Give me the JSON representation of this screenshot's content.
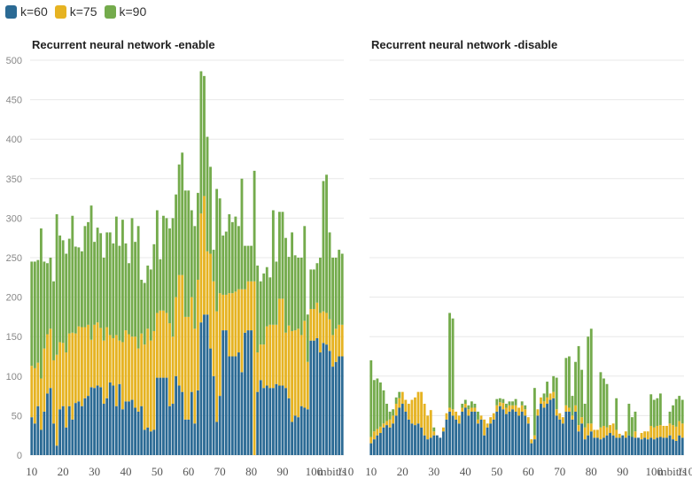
{
  "legend": [
    {
      "label": "k=60",
      "color": "#2b6a94"
    },
    {
      "label": "k=75",
      "color": "#e6b322"
    },
    {
      "label": "k=90",
      "color": "#74ab4c"
    }
  ],
  "chart_data": [
    {
      "type": "bar",
      "stacked": true,
      "title": "Recurrent neural network -enable",
      "xlabel": "mbit/s",
      "ylabel": "",
      "ylim": [
        0,
        500
      ],
      "yticks": [
        0,
        50,
        100,
        150,
        200,
        250,
        300,
        350,
        400,
        450,
        500
      ],
      "xticks": [
        10,
        20,
        30,
        40,
        50,
        60,
        70,
        80,
        90,
        100,
        110
      ],
      "x_start": 10,
      "x_step": 1,
      "grid": true,
      "series": [
        {
          "name": "k=60",
          "values": [
            48,
            40,
            62,
            32,
            55,
            78,
            85,
            40,
            12,
            58,
            62,
            35,
            62,
            45,
            66,
            68,
            62,
            72,
            75,
            86,
            85,
            88,
            86,
            65,
            72,
            92,
            88,
            62,
            90,
            58,
            68,
            68,
            70,
            60,
            55,
            62,
            32,
            35,
            30,
            32,
            98,
            98,
            98,
            98,
            62,
            65,
            100,
            88,
            80,
            45,
            45,
            80,
            40,
            82,
            168,
            178,
            178,
            135,
            100,
            42,
            75,
            158,
            158,
            125,
            125,
            125,
            130,
            105,
            155,
            158,
            158,
            0,
            80,
            95,
            85,
            88,
            85,
            85,
            90,
            88,
            88,
            85,
            72,
            42,
            50,
            48,
            62,
            60,
            58,
            145,
            145,
            148,
            130,
            142,
            140,
            132,
            112,
            118,
            125,
            125
          ]
        },
        {
          "name": "k=75",
          "values": [
            65,
            70,
            55,
            65,
            80,
            75,
            75,
            80,
            115,
            85,
            80,
            95,
            92,
            110,
            88,
            95,
            100,
            90,
            90,
            60,
            80,
            80,
            75,
            80,
            90,
            60,
            60,
            90,
            55,
            85,
            90,
            85,
            80,
            90,
            80,
            92,
            108,
            125,
            115,
            125,
            82,
            85,
            85,
            82,
            105,
            85,
            100,
            140,
            148,
            130,
            130,
            120,
            120,
            140,
            138,
            150,
            80,
            120,
            120,
            140,
            130,
            45,
            45,
            80,
            80,
            82,
            80,
            105,
            55,
            62,
            62,
            220,
            50,
            45,
            55,
            75,
            80,
            80,
            75,
            110,
            110,
            70,
            92,
            115,
            108,
            112,
            90,
            110,
            60,
            40,
            40,
            45,
            50,
            40,
            40,
            40,
            40,
            42,
            40,
            40
          ]
        },
        {
          "name": "k=90",
          "values": [
            132,
            135,
            130,
            190,
            110,
            90,
            90,
            100,
            178,
            135,
            130,
            125,
            120,
            148,
            110,
            100,
            96,
            128,
            130,
            170,
            105,
            120,
            120,
            105,
            120,
            130,
            120,
            150,
            120,
            155,
            110,
            90,
            150,
            120,
            155,
            68,
            78,
            80,
            90,
            110,
            130,
            65,
            120,
            120,
            120,
            150,
            130,
            140,
            155,
            160,
            160,
            110,
            130,
            110,
            180,
            152,
            145,
            110,
            40,
            155,
            120,
            75,
            80,
            100,
            90,
            95,
            80,
            140,
            55,
            45,
            45,
            140,
            110,
            80,
            90,
            75,
            60,
            145,
            80,
            110,
            110,
            120,
            87,
            125,
            95,
            90,
            98,
            120,
            60,
            50,
            50,
            50,
            70,
            165,
            175,
            110,
            98,
            90,
            95,
            90
          ]
        }
      ]
    },
    {
      "type": "bar",
      "stacked": true,
      "title": "Recurrent neural network -disable",
      "xlabel": "mbit/s",
      "ylabel": "",
      "ylim": [
        0,
        500
      ],
      "yticks": [
        0,
        50,
        100,
        150,
        200,
        250,
        300,
        350,
        400,
        450,
        500
      ],
      "xticks": [
        10,
        20,
        30,
        40,
        50,
        60,
        70,
        80,
        90,
        100,
        110
      ],
      "x_start": 10,
      "x_step": 1,
      "grid": true,
      "series": [
        {
          "name": "k=60",
          "values": [
            15,
            20,
            25,
            28,
            35,
            38,
            35,
            40,
            50,
            60,
            65,
            55,
            45,
            40,
            38,
            40,
            35,
            25,
            20,
            22,
            25,
            25,
            22,
            30,
            45,
            55,
            50,
            45,
            40,
            55,
            60,
            50,
            55,
            55,
            40,
            45,
            25,
            35,
            40,
            45,
            55,
            62,
            58,
            52,
            55,
            58,
            55,
            50,
            55,
            50,
            40,
            15,
            20,
            50,
            65,
            60,
            65,
            70,
            72,
            50,
            45,
            40,
            55,
            55,
            45,
            55,
            30,
            40,
            20,
            25,
            30,
            22,
            22,
            20,
            22,
            25,
            28,
            25,
            22,
            22,
            25,
            22,
            25,
            23,
            22,
            22,
            20,
            22,
            20,
            22,
            20,
            22,
            23,
            22,
            22,
            25,
            20,
            18,
            25,
            22
          ]
        },
        {
          "name": "k=75",
          "values": [
            8,
            10,
            8,
            8,
            5,
            5,
            10,
            10,
            15,
            12,
            15,
            15,
            20,
            30,
            35,
            40,
            45,
            40,
            30,
            35,
            5,
            0,
            0,
            5,
            8,
            5,
            8,
            10,
            10,
            5,
            5,
            8,
            5,
            5,
            5,
            5,
            20,
            5,
            8,
            8,
            8,
            5,
            8,
            8,
            8,
            5,
            8,
            10,
            8,
            8,
            8,
            5,
            5,
            8,
            8,
            8,
            8,
            8,
            8,
            8,
            8,
            8,
            8,
            5,
            5,
            8,
            8,
            8,
            15,
            15,
            10,
            10,
            10,
            15,
            15,
            10,
            10,
            15,
            10,
            5,
            0,
            8,
            0,
            0,
            8,
            0,
            8,
            8,
            10,
            15,
            15,
            15,
            15,
            15,
            15,
            15,
            18,
            18,
            18,
            18
          ]
        },
        {
          "name": "k=90",
          "values": [
            97,
            65,
            64,
            56,
            42,
            22,
            10,
            8,
            8,
            8,
            0,
            0,
            0,
            0,
            0,
            0,
            0,
            0,
            0,
            0,
            5,
            0,
            0,
            0,
            0,
            120,
            115,
            0,
            0,
            5,
            5,
            5,
            8,
            5,
            10,
            0,
            0,
            0,
            0,
            0,
            8,
            5,
            5,
            5,
            5,
            5,
            8,
            0,
            5,
            5,
            0,
            0,
            60,
            0,
            0,
            10,
            20,
            0,
            20,
            40,
            0,
            0,
            60,
            65,
            25,
            55,
            100,
            60,
            30,
            110,
            120,
            0,
            0,
            70,
            60,
            55,
            0,
            0,
            40,
            0,
            0,
            0,
            40,
            25,
            25,
            0,
            0,
            0,
            0,
            40,
            35,
            35,
            40,
            0,
            0,
            15,
            25,
            35,
            32,
            30
          ]
        }
      ]
    }
  ],
  "panels": [
    {
      "title": "Recurrent neural network -enable"
    },
    {
      "title": "Recurrent neural network -disable"
    }
  ]
}
